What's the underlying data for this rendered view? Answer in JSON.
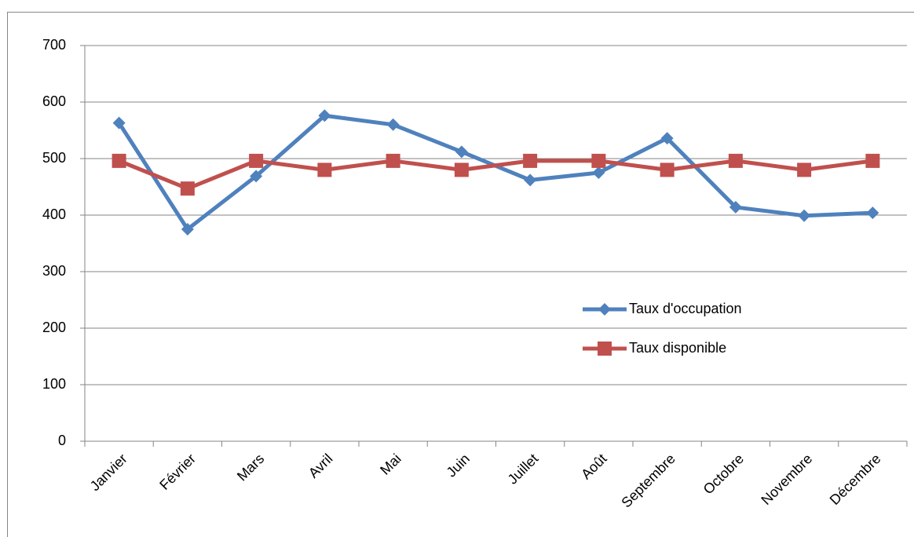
{
  "chart_data": {
    "type": "line",
    "categories": [
      "Janvier",
      "Février",
      "Mars",
      "Avril",
      "Mai",
      "Juin",
      "Juillet",
      "Août",
      "Septembre",
      "Octobre",
      "Novembre",
      "Décembre"
    ],
    "series": [
      {
        "name": "Taux d'occupation",
        "color": "#4f81bd",
        "marker": "diamond",
        "values": [
          563,
          375,
          469,
          576,
          560,
          512,
          462,
          475,
          536,
          414,
          399,
          404
        ]
      },
      {
        "name": "Taux disponible",
        "color": "#c0504d",
        "marker": "square",
        "values": [
          496,
          447,
          496,
          480,
          496,
          480,
          496,
          496,
          480,
          496,
          480,
          496
        ]
      }
    ],
    "ylim": [
      0,
      700
    ],
    "yticks": [
      0,
      100,
      200,
      300,
      400,
      500,
      600,
      700
    ],
    "grid": true,
    "legend": "right"
  }
}
